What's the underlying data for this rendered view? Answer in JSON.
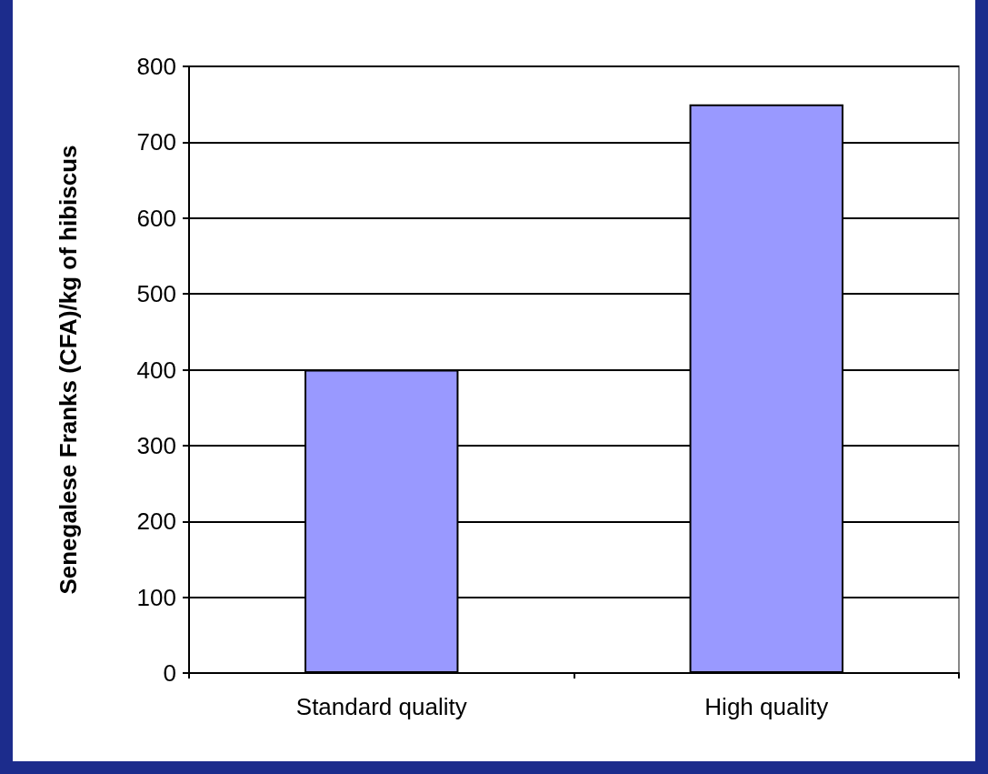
{
  "chart_data": {
    "type": "bar",
    "ylabel": "Senegalese Franks (CFA)/kg of hibiscus",
    "categories": [
      "Standard quality",
      "High quality"
    ],
    "values": [
      400,
      750
    ],
    "color": "#9999ff",
    "ylim": [
      0,
      800
    ],
    "yticks": [
      0,
      100,
      200,
      300,
      400,
      500,
      600,
      700,
      800
    ],
    "grid": "y"
  }
}
